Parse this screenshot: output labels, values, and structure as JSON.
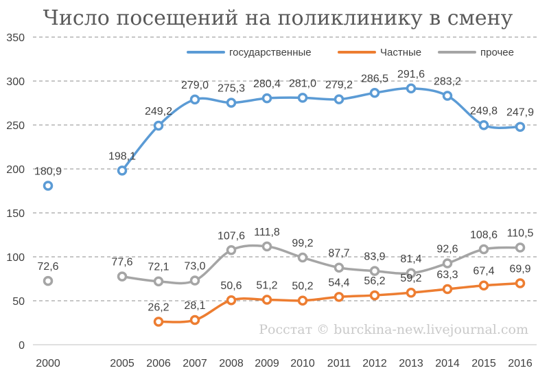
{
  "chart_data": {
    "type": "line",
    "title": "Число посещений на поликлинику в смену",
    "xlabel": "",
    "ylabel": "",
    "x": [
      "2000",
      "2005",
      "2006",
      "2007",
      "2008",
      "2009",
      "2010",
      "2011",
      "2012",
      "2013",
      "2014",
      "2015",
      "2016"
    ],
    "ylim": [
      0,
      350
    ],
    "yticks": [
      "0",
      "50",
      "100",
      "150",
      "200",
      "250",
      "300",
      "350"
    ],
    "grid": "horizontal-dashed",
    "legend_position": "top-right",
    "series": [
      {
        "name": "государственные",
        "color": "#5b9bd5",
        "values": [
          180.9,
          198.1,
          249.2,
          279.0,
          275.3,
          280.4,
          281.0,
          279.2,
          286.5,
          291.6,
          283.2,
          249.8,
          247.9
        ],
        "labels": [
          "180,9",
          "198,1",
          "249,2",
          "279,0",
          "275,3",
          "280,4",
          "281,0",
          "279,2",
          "286,5",
          "291,6",
          "283,2",
          "249,8",
          "247,9"
        ]
      },
      {
        "name": "Частные",
        "color": "#ed7d31",
        "values": [
          null,
          null,
          26.2,
          28.1,
          50.6,
          51.2,
          50.2,
          54.4,
          56.2,
          59.2,
          63.3,
          67.4,
          69.9
        ],
        "labels": [
          null,
          null,
          "26,2",
          "28,1",
          "50,6",
          "51,2",
          "50,2",
          "54,4",
          "56,2",
          "59,2",
          "63,3",
          "67,4",
          "69,9"
        ]
      },
      {
        "name": "прочее",
        "color": "#a5a5a5",
        "values": [
          72.6,
          77.6,
          72.1,
          73.0,
          107.6,
          111.8,
          99.2,
          87.7,
          83.9,
          81.4,
          92.6,
          108.6,
          110.5
        ],
        "labels": [
          "72,6",
          "77,6",
          "72,1",
          "73,0",
          "107,6",
          "111,8",
          "99,2",
          "87,7",
          "83,9",
          "81,4",
          "92,6",
          "108,6",
          "110,5"
        ]
      }
    ],
    "watermark": "Росстат © burckina-new.livejournal.com"
  }
}
